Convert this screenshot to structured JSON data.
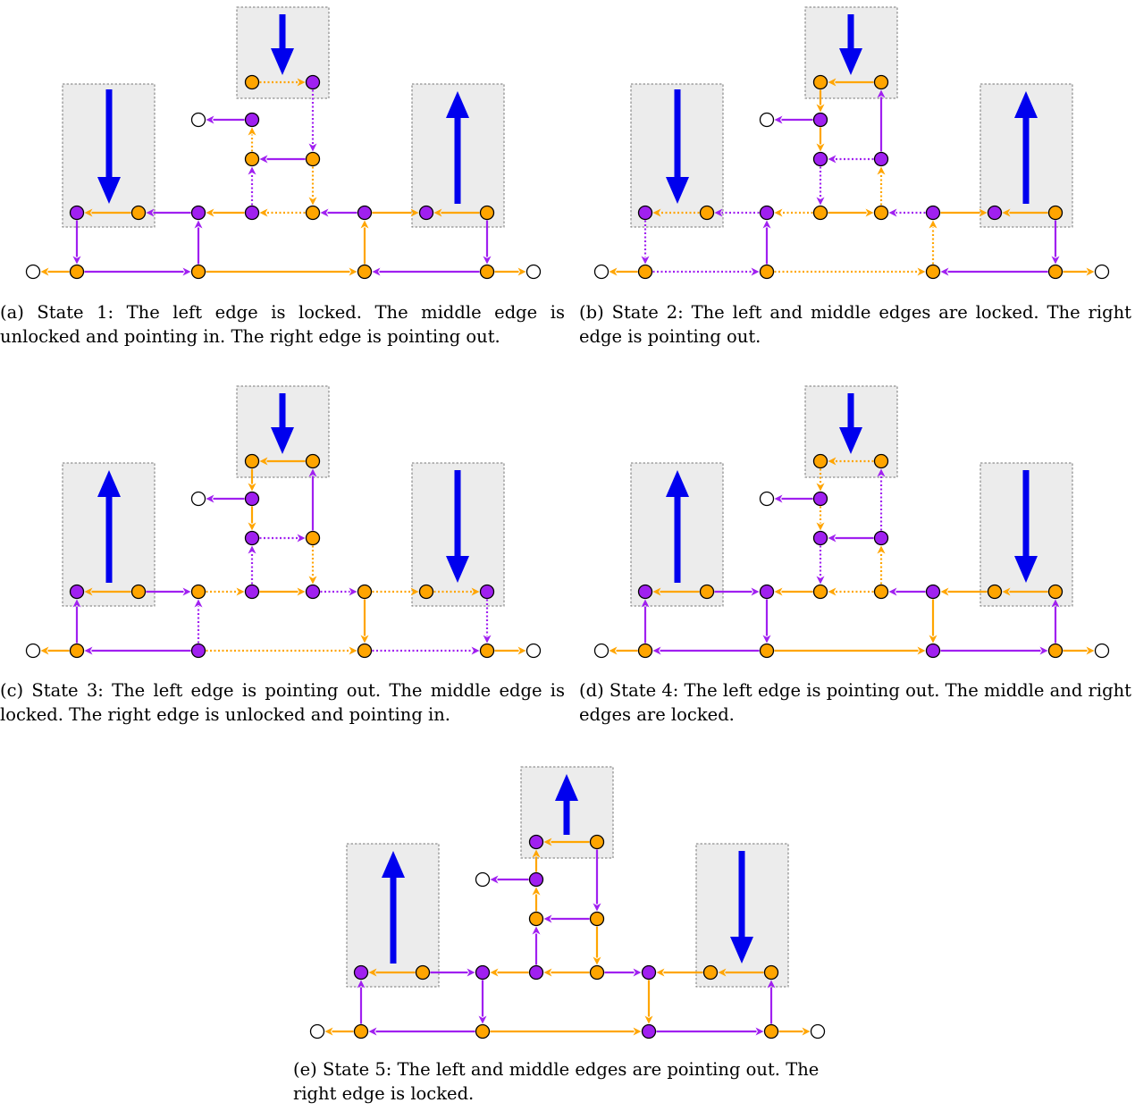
{
  "colors": {
    "orange": "#ffa500",
    "purple": "#a020f0",
    "blue": "#0000ee",
    "gadget_fill": "#ececec",
    "gadget_border": "#777777",
    "white_node": "#ffffff"
  },
  "panels": [
    {
      "id": "a",
      "caption": "(a) State 1: The left edge is locked. The middle edge is unlocked and pointing in. The right edge is pointing out.",
      "big_arrows": {
        "top": "down",
        "left": "down",
        "right": "up"
      },
      "nodes": {
        "TL": "orange",
        "TR": "purple",
        "U1": "purple",
        "U2": "orange",
        "U3": "orange",
        "L1": "purple",
        "L2": "orange",
        "M1": "purple",
        "M2": "purple",
        "M3": "orange",
        "R1": "purple",
        "R2": "purple",
        "R3": "orange",
        "B1": "orange",
        "B2": "orange",
        "B3": "orange",
        "B4": "orange"
      },
      "edges": [
        {
          "from": "TL",
          "to": "TR",
          "color": "orange",
          "dotted": true
        },
        {
          "from": "U1",
          "to": "WU",
          "color": "purple",
          "dotted": false
        },
        {
          "from": "U2",
          "to": "U1",
          "color": "orange",
          "dotted": true
        },
        {
          "from": "TR",
          "to": "U3",
          "color": "purple",
          "dotted": true
        },
        {
          "from": "U3",
          "to": "U2",
          "color": "purple",
          "dotted": false
        },
        {
          "from": "M2",
          "to": "U2",
          "color": "purple",
          "dotted": true
        },
        {
          "from": "U3",
          "to": "M3",
          "color": "orange",
          "dotted": true
        },
        {
          "from": "L2",
          "to": "L1",
          "color": "orange",
          "dotted": false
        },
        {
          "from": "M1",
          "to": "L2",
          "color": "purple",
          "dotted": false
        },
        {
          "from": "M2",
          "to": "M1",
          "color": "orange",
          "dotted": false
        },
        {
          "from": "M3",
          "to": "M2",
          "color": "orange",
          "dotted": true
        },
        {
          "from": "R1",
          "to": "M3",
          "color": "purple",
          "dotted": false
        },
        {
          "from": "R1",
          "to": "R2",
          "color": "orange",
          "dotted": false
        },
        {
          "from": "R3",
          "to": "R2",
          "color": "orange",
          "dotted": false
        },
        {
          "from": "L1",
          "to": "B1",
          "color": "purple",
          "dotted": false
        },
        {
          "from": "B2",
          "to": "M1",
          "color": "purple",
          "dotted": false
        },
        {
          "from": "B3",
          "to": "R1",
          "color": "orange",
          "dotted": false
        },
        {
          "from": "R3",
          "to": "B4",
          "color": "purple",
          "dotted": false
        },
        {
          "from": "B1",
          "to": "WL",
          "color": "orange",
          "dotted": false
        },
        {
          "from": "B1",
          "to": "B2",
          "color": "purple",
          "dotted": false
        },
        {
          "from": "B2",
          "to": "B3",
          "color": "orange",
          "dotted": false
        },
        {
          "from": "B4",
          "to": "B3",
          "color": "purple",
          "dotted": false
        },
        {
          "from": "B4",
          "to": "WR",
          "color": "orange",
          "dotted": false
        }
      ]
    },
    {
      "id": "b",
      "caption": "(b) State 2: The left and middle edges are locked. The right edge is pointing out.",
      "big_arrows": {
        "top": "down",
        "left": "down",
        "right": "up"
      },
      "nodes": {
        "TL": "orange",
        "TR": "orange",
        "U1": "purple",
        "U2": "purple",
        "U3": "purple",
        "L1": "purple",
        "L2": "orange",
        "M1": "purple",
        "M2": "orange",
        "M3": "orange",
        "R1": "purple",
        "R2": "purple",
        "R3": "orange",
        "B1": "orange",
        "B2": "orange",
        "B3": "orange",
        "B4": "orange"
      },
      "edges": [
        {
          "from": "TR",
          "to": "TL",
          "color": "orange",
          "dotted": false
        },
        {
          "from": "U1",
          "to": "WU",
          "color": "purple",
          "dotted": false
        },
        {
          "from": "TL",
          "to": "U1",
          "color": "orange",
          "dotted": false
        },
        {
          "from": "U3",
          "to": "TR",
          "color": "purple",
          "dotted": false
        },
        {
          "from": "U1",
          "to": "U2",
          "color": "orange",
          "dotted": false
        },
        {
          "from": "U3",
          "to": "U2",
          "color": "purple",
          "dotted": true
        },
        {
          "from": "U2",
          "to": "M2",
          "color": "purple",
          "dotted": true
        },
        {
          "from": "M3",
          "to": "U3",
          "color": "orange",
          "dotted": true
        },
        {
          "from": "L2",
          "to": "L1",
          "color": "orange",
          "dotted": true
        },
        {
          "from": "M1",
          "to": "L2",
          "color": "purple",
          "dotted": true
        },
        {
          "from": "M2",
          "to": "M1",
          "color": "orange",
          "dotted": true
        },
        {
          "from": "M2",
          "to": "M3",
          "color": "orange",
          "dotted": false
        },
        {
          "from": "R1",
          "to": "M3",
          "color": "purple",
          "dotted": true
        },
        {
          "from": "R1",
          "to": "R2",
          "color": "orange",
          "dotted": false
        },
        {
          "from": "R3",
          "to": "R2",
          "color": "orange",
          "dotted": false
        },
        {
          "from": "L1",
          "to": "B1",
          "color": "purple",
          "dotted": true
        },
        {
          "from": "B2",
          "to": "M1",
          "color": "purple",
          "dotted": false
        },
        {
          "from": "B3",
          "to": "R1",
          "color": "orange",
          "dotted": true
        },
        {
          "from": "R3",
          "to": "B4",
          "color": "purple",
          "dotted": false
        },
        {
          "from": "B1",
          "to": "WL",
          "color": "orange",
          "dotted": false
        },
        {
          "from": "B1",
          "to": "B2",
          "color": "purple",
          "dotted": true
        },
        {
          "from": "B2",
          "to": "B3",
          "color": "orange",
          "dotted": true
        },
        {
          "from": "B4",
          "to": "B3",
          "color": "purple",
          "dotted": false
        },
        {
          "from": "B4",
          "to": "WR",
          "color": "orange",
          "dotted": false
        }
      ]
    },
    {
      "id": "c",
      "caption": "(c) State 3: The left edge is pointing out. The middle edge is locked. The right edge is unlocked and pointing in.",
      "big_arrows": {
        "top": "down",
        "left": "up",
        "right": "down"
      },
      "nodes": {
        "TL": "orange",
        "TR": "orange",
        "U1": "purple",
        "U2": "purple",
        "U3": "orange",
        "L1": "purple",
        "L2": "orange",
        "M1": "orange",
        "M2": "purple",
        "M3": "purple",
        "R1": "orange",
        "R2": "orange",
        "R3": "purple",
        "B1": "orange",
        "B2": "purple",
        "B3": "orange",
        "B4": "orange"
      },
      "edges": [
        {
          "from": "TR",
          "to": "TL",
          "color": "orange",
          "dotted": false
        },
        {
          "from": "U1",
          "to": "WU",
          "color": "purple",
          "dotted": false
        },
        {
          "from": "TL",
          "to": "U1",
          "color": "orange",
          "dotted": false
        },
        {
          "from": "U3",
          "to": "TR",
          "color": "purple",
          "dotted": false
        },
        {
          "from": "U1",
          "to": "U2",
          "color": "orange",
          "dotted": false
        },
        {
          "from": "U2",
          "to": "U3",
          "color": "purple",
          "dotted": true
        },
        {
          "from": "M2",
          "to": "U2",
          "color": "purple",
          "dotted": true
        },
        {
          "from": "U3",
          "to": "M3",
          "color": "orange",
          "dotted": true
        },
        {
          "from": "L2",
          "to": "L1",
          "color": "orange",
          "dotted": false
        },
        {
          "from": "L2",
          "to": "M1",
          "color": "purple",
          "dotted": false
        },
        {
          "from": "M1",
          "to": "M2",
          "color": "orange",
          "dotted": true
        },
        {
          "from": "M2",
          "to": "M3",
          "color": "orange",
          "dotted": false
        },
        {
          "from": "M3",
          "to": "R1",
          "color": "purple",
          "dotted": true
        },
        {
          "from": "R1",
          "to": "R2",
          "color": "orange",
          "dotted": true
        },
        {
          "from": "R2",
          "to": "R3",
          "color": "orange",
          "dotted": true
        },
        {
          "from": "B1",
          "to": "L1",
          "color": "purple",
          "dotted": false
        },
        {
          "from": "B2",
          "to": "M1",
          "color": "purple",
          "dotted": true
        },
        {
          "from": "R1",
          "to": "B3",
          "color": "orange",
          "dotted": false
        },
        {
          "from": "R3",
          "to": "B4",
          "color": "purple",
          "dotted": true
        },
        {
          "from": "B1",
          "to": "WL",
          "color": "orange",
          "dotted": false
        },
        {
          "from": "B2",
          "to": "B1",
          "color": "purple",
          "dotted": false
        },
        {
          "from": "B2",
          "to": "B3",
          "color": "orange",
          "dotted": true
        },
        {
          "from": "B3",
          "to": "B4",
          "color": "purple",
          "dotted": true
        },
        {
          "from": "B4",
          "to": "WR",
          "color": "orange",
          "dotted": false
        }
      ]
    },
    {
      "id": "d",
      "caption": "(d) State 4: The left edge is pointing out. The middle and right edges are locked.",
      "big_arrows": {
        "top": "down",
        "left": "up",
        "right": "down"
      },
      "nodes": {
        "TL": "orange",
        "TR": "orange",
        "U1": "purple",
        "U2": "purple",
        "U3": "purple",
        "L1": "purple",
        "L2": "orange",
        "M1": "purple",
        "M2": "orange",
        "M3": "orange",
        "R1": "purple",
        "R2": "orange",
        "R3": "orange",
        "B1": "orange",
        "B2": "orange",
        "B3": "purple",
        "B4": "orange"
      },
      "edges": [
        {
          "from": "TR",
          "to": "TL",
          "color": "orange",
          "dotted": true
        },
        {
          "from": "U1",
          "to": "WU",
          "color": "purple",
          "dotted": false
        },
        {
          "from": "TL",
          "to": "U1",
          "color": "orange",
          "dotted": true
        },
        {
          "from": "U3",
          "to": "TR",
          "color": "purple",
          "dotted": true
        },
        {
          "from": "U1",
          "to": "U2",
          "color": "orange",
          "dotted": true
        },
        {
          "from": "U3",
          "to": "U2",
          "color": "purple",
          "dotted": false
        },
        {
          "from": "U2",
          "to": "M2",
          "color": "purple",
          "dotted": true
        },
        {
          "from": "M3",
          "to": "U3",
          "color": "orange",
          "dotted": true
        },
        {
          "from": "L2",
          "to": "L1",
          "color": "orange",
          "dotted": false
        },
        {
          "from": "L2",
          "to": "M1",
          "color": "purple",
          "dotted": false
        },
        {
          "from": "M2",
          "to": "M1",
          "color": "orange",
          "dotted": false
        },
        {
          "from": "M3",
          "to": "M2",
          "color": "orange",
          "dotted": true
        },
        {
          "from": "R1",
          "to": "M3",
          "color": "purple",
          "dotted": false
        },
        {
          "from": "R2",
          "to": "R1",
          "color": "orange",
          "dotted": false
        },
        {
          "from": "R3",
          "to": "R2",
          "color": "orange",
          "dotted": false
        },
        {
          "from": "B1",
          "to": "L1",
          "color": "purple",
          "dotted": false
        },
        {
          "from": "M1",
          "to": "B2",
          "color": "purple",
          "dotted": false
        },
        {
          "from": "R1",
          "to": "B3",
          "color": "orange",
          "dotted": false
        },
        {
          "from": "B4",
          "to": "R3",
          "color": "purple",
          "dotted": false
        },
        {
          "from": "B1",
          "to": "WL",
          "color": "orange",
          "dotted": false
        },
        {
          "from": "B2",
          "to": "B1",
          "color": "purple",
          "dotted": false
        },
        {
          "from": "B2",
          "to": "B3",
          "color": "orange",
          "dotted": false
        },
        {
          "from": "B3",
          "to": "B4",
          "color": "purple",
          "dotted": false
        },
        {
          "from": "B4",
          "to": "WR",
          "color": "orange",
          "dotted": false
        }
      ]
    },
    {
      "id": "e",
      "caption": "(e) State 5: The left and middle edges are pointing out. The right edge is locked.",
      "big_arrows": {
        "top": "up",
        "left": "up",
        "right": "down"
      },
      "nodes": {
        "TL": "purple",
        "TR": "orange",
        "U1": "purple",
        "U2": "orange",
        "U3": "orange",
        "L1": "purple",
        "L2": "orange",
        "M1": "purple",
        "M2": "purple",
        "M3": "orange",
        "R1": "purple",
        "R2": "orange",
        "R3": "orange",
        "B1": "orange",
        "B2": "orange",
        "B3": "purple",
        "B4": "orange"
      },
      "edges": [
        {
          "from": "TR",
          "to": "TL",
          "color": "orange",
          "dotted": false
        },
        {
          "from": "U1",
          "to": "WU",
          "color": "purple",
          "dotted": false
        },
        {
          "from": "U1",
          "to": "TL",
          "color": "orange",
          "dotted": false
        },
        {
          "from": "TR",
          "to": "U3",
          "color": "purple",
          "dotted": false
        },
        {
          "from": "U3",
          "to": "U2",
          "color": "purple",
          "dotted": false
        },
        {
          "from": "U2",
          "to": "U1",
          "color": "orange",
          "dotted": false
        },
        {
          "from": "M2",
          "to": "U2",
          "color": "purple",
          "dotted": false
        },
        {
          "from": "U3",
          "to": "M3",
          "color": "orange",
          "dotted": false
        },
        {
          "from": "L2",
          "to": "L1",
          "color": "orange",
          "dotted": false
        },
        {
          "from": "L2",
          "to": "M1",
          "color": "purple",
          "dotted": false
        },
        {
          "from": "M2",
          "to": "M1",
          "color": "orange",
          "dotted": false
        },
        {
          "from": "M3",
          "to": "M2",
          "color": "orange",
          "dotted": false
        },
        {
          "from": "M3",
          "to": "R1",
          "color": "purple",
          "dotted": false
        },
        {
          "from": "R2",
          "to": "R1",
          "color": "orange",
          "dotted": false
        },
        {
          "from": "R3",
          "to": "R2",
          "color": "orange",
          "dotted": false
        },
        {
          "from": "B1",
          "to": "L1",
          "color": "purple",
          "dotted": false
        },
        {
          "from": "M1",
          "to": "B2",
          "color": "purple",
          "dotted": false
        },
        {
          "from": "R1",
          "to": "B3",
          "color": "orange",
          "dotted": false
        },
        {
          "from": "B4",
          "to": "R3",
          "color": "purple",
          "dotted": false
        },
        {
          "from": "B1",
          "to": "WL",
          "color": "orange",
          "dotted": false
        },
        {
          "from": "B2",
          "to": "B1",
          "color": "purple",
          "dotted": false
        },
        {
          "from": "B2",
          "to": "B3",
          "color": "orange",
          "dotted": false
        },
        {
          "from": "B3",
          "to": "B4",
          "color": "purple",
          "dotted": false
        },
        {
          "from": "B4",
          "to": "WR",
          "color": "orange",
          "dotted": false
        }
      ]
    }
  ]
}
